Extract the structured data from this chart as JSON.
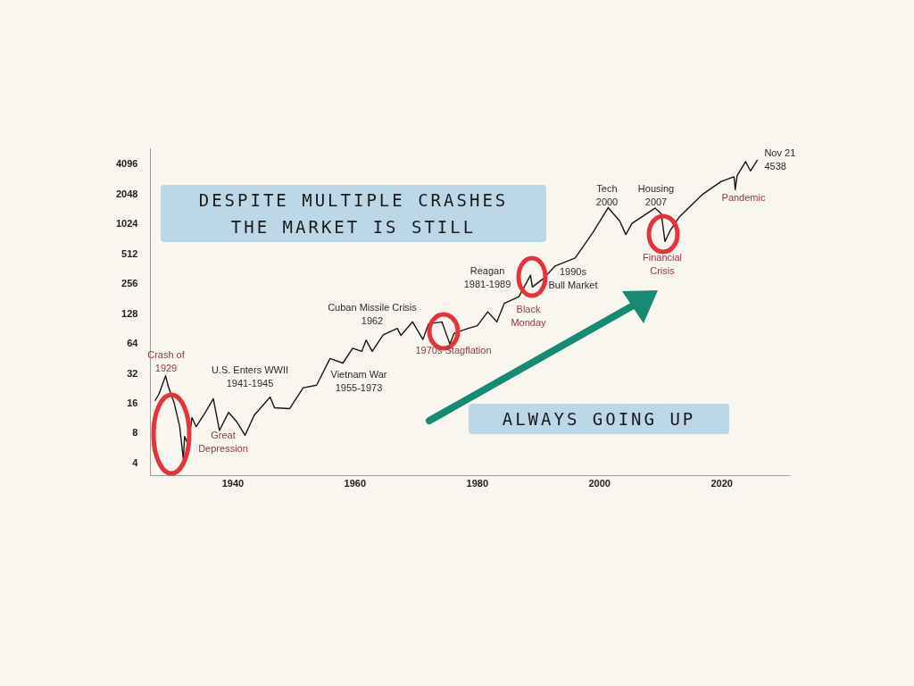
{
  "chart_data": {
    "type": "line",
    "log": "y",
    "marker": "none",
    "color": "#151515",
    "x": [
      1927.3,
      1927.9,
      1929.0,
      1929.4,
      1930.4,
      1931.3,
      1931.9,
      1932.1,
      1932.7,
      1933.3,
      1934.0,
      1935.5,
      1936.8,
      1937.8,
      1939.3,
      1940.7,
      1942.0,
      1943.5,
      1946.1,
      1946.8,
      1949.3,
      1951.5,
      1953.7,
      1955.9,
      1958.0,
      1959.6,
      1961.1,
      1961.8,
      1962.8,
      1964.6,
      1966.9,
      1967.5,
      1969.4,
      1971.1,
      1972.0,
      1974.2,
      1975.5,
      1976.2,
      1978.5,
      1980.0,
      1981.7,
      1983.2,
      1984.4,
      1986.8,
      1988.7,
      1989.0,
      1990.8,
      1992.7,
      1996.0,
      1998.9,
      2001.4,
      2003.3,
      2004.3,
      2005.3,
      2009.1,
      2010.1,
      2010.7,
      2011.6,
      2013.0,
      2014.9,
      2016.9,
      2019.9,
      2022.0,
      2022.2,
      2022.5,
      2023.9,
      2024.7,
      2025.8
    ],
    "values": [
      17.3,
      20,
      30.7,
      24.2,
      16.2,
      9.4,
      4.4,
      7.5,
      6.1,
      11.6,
      9.4,
      13.1,
      18,
      8.6,
      13.1,
      10.4,
      7.7,
      12.3,
      18.7,
      14.6,
      14.3,
      23.2,
      24.6,
      45.7,
      41.1,
      58,
      54,
      70,
      54,
      79,
      92,
      78,
      107,
      71,
      102,
      107,
      64,
      82,
      92,
      98,
      135,
      107,
      164,
      192,
      316,
      240,
      292,
      390,
      470,
      850,
      1510,
      1110,
      810,
      1050,
      1500,
      1310,
      690,
      900,
      1210,
      1580,
      2070,
      2780,
      3100,
      2300,
      3180,
      4400,
      3540,
      4538
    ],
    "xlim": [
      1926.5,
      2031
    ],
    "ylim": [
      3,
      6000
    ],
    "xticks": [
      1940,
      1960,
      1980,
      2000,
      2020
    ],
    "yticks": [
      4,
      8,
      16,
      32,
      64,
      128,
      256,
      512,
      1024,
      2048,
      4096
    ],
    "annotations": [
      "DESPITE MULTIPLE CRASHES\nTHE MARKET IS STILL",
      "ALWAYS GOING UP",
      "Crash of\n1929",
      "Great\nDepression",
      "U.S. Enters WWII\n1941-1945",
      "Cuban Missile Crisis\n1962",
      "Vietnam War\n1955-1973",
      "1970s Stagflation",
      "Reagan\n1981-1989",
      "Black\nMonday",
      "1990s\nBull Market",
      "Tech\n2000",
      "Housing\n2007",
      "Financial\nCrisis",
      "Pandemic",
      {
        "text": "Nov 21\n4538",
        "x": 2025.8,
        "y": 4538
      }
    ]
  }
}
